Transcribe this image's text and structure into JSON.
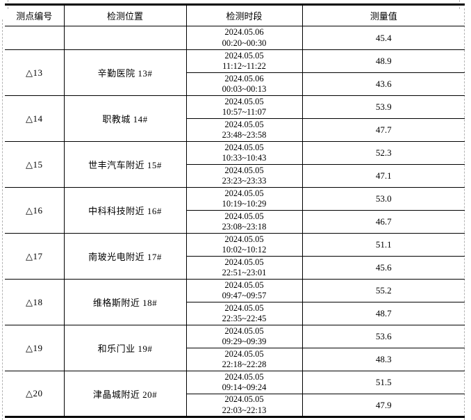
{
  "page": {
    "colors": {
      "background": "#ffffff",
      "table_border": "#000000",
      "boundary_guide": "#b3b3b3",
      "text": "#000000"
    }
  },
  "table": {
    "headers": [
      "测点编号",
      "检测位置",
      "检测时段",
      "测量值"
    ],
    "continuation": {
      "point": "",
      "location": "",
      "date": "2024.05.06",
      "time": "00:20~00:30",
      "value": "45.4"
    },
    "groups": [
      {
        "point": "△13",
        "location": "辛勤医院 13#",
        "measurements": [
          {
            "date": "2024.05.05",
            "time": "11:12~11:22",
            "value": "48.9"
          },
          {
            "date": "2024.05.06",
            "time": "00:03~00:13",
            "value": "43.6"
          }
        ]
      },
      {
        "point": "△14",
        "location": "职教城 14#",
        "measurements": [
          {
            "date": "2024.05.05",
            "time": "10:57~11:07",
            "value": "53.9"
          },
          {
            "date": "2024.05.05",
            "time": "23:48~23:58",
            "value": "47.7"
          }
        ]
      },
      {
        "point": "△15",
        "location": "世丰汽车附近 15#",
        "measurements": [
          {
            "date": "2024.05.05",
            "time": "10:33~10:43",
            "value": "52.3"
          },
          {
            "date": "2024.05.05",
            "time": "23:23~23:33",
            "value": "47.1"
          }
        ]
      },
      {
        "point": "△16",
        "location": "中科科技附近 16#",
        "measurements": [
          {
            "date": "2024.05.05",
            "time": "10:19~10:29",
            "value": "53.0"
          },
          {
            "date": "2024.05.05",
            "time": "23:08~23:18",
            "value": "46.7"
          }
        ]
      },
      {
        "point": "△17",
        "location": "南玻光电附近 17#",
        "measurements": [
          {
            "date": "2024.05.05",
            "time": "10:02~10:12",
            "value": "51.1"
          },
          {
            "date": "2024.05.05",
            "time": "22:51~23:01",
            "value": "45.6"
          }
        ]
      },
      {
        "point": "△18",
        "location": "维格斯附近 18#",
        "measurements": [
          {
            "date": "2024.05.05",
            "time": "09:47~09:57",
            "value": "55.2"
          },
          {
            "date": "2024.05.05",
            "time": "22:35~22:45",
            "value": "48.7"
          }
        ]
      },
      {
        "point": "△19",
        "location": "和乐门业 19#",
        "measurements": [
          {
            "date": "2024.05.05",
            "time": "09:29~09:39",
            "value": "53.6"
          },
          {
            "date": "2024.05.05",
            "time": "22:18~22:28",
            "value": "48.3"
          }
        ]
      },
      {
        "point": "△20",
        "location": "津晶城附近 20#",
        "measurements": [
          {
            "date": "2024.05.05",
            "time": "09:14~09:24",
            "value": "51.5"
          },
          {
            "date": "2024.05.05",
            "time": "22:03~22:13",
            "value": "47.9"
          }
        ]
      }
    ]
  }
}
